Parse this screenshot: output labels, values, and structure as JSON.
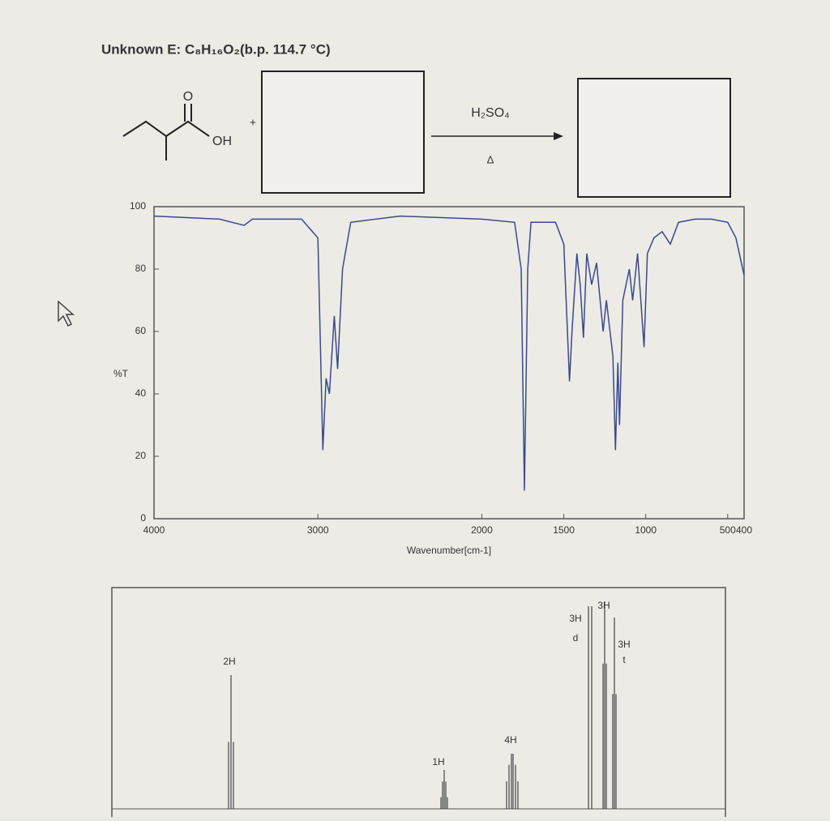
{
  "title": "Unknown E: C₈H₁₆O₂(b.p. 114.7 °C)",
  "reaction": {
    "carbonyl_o": "O",
    "hydroxyl": "OH",
    "plus": "+",
    "reagent": "H₂SO₄",
    "condition": "Δ"
  },
  "chart_data": {
    "type": "line",
    "xlabel": "Wavenumber[cm-1]",
    "ylabel": "%T",
    "xlim": [
      4000,
      400
    ],
    "ylim": [
      0,
      100
    ],
    "xticks": [
      4000,
      3000,
      2000,
      1500,
      1000,
      500,
      400
    ],
    "yticks": [
      0,
      20,
      40,
      60,
      80,
      100
    ],
    "color": "#3a4a8a",
    "x": [
      4000,
      3600,
      3450,
      3400,
      3100,
      3000,
      2970,
      2950,
      2930,
      2900,
      2880,
      2850,
      2800,
      2500,
      2000,
      1800,
      1760,
      1740,
      1720,
      1700,
      1550,
      1500,
      1465,
      1450,
      1420,
      1400,
      1380,
      1360,
      1330,
      1300,
      1260,
      1240,
      1200,
      1185,
      1170,
      1160,
      1140,
      1100,
      1080,
      1050,
      1010,
      990,
      950,
      900,
      850,
      800,
      700,
      600,
      500,
      450,
      400
    ],
    "values": [
      97,
      96,
      94,
      96,
      96,
      90,
      22,
      45,
      40,
      65,
      48,
      80,
      95,
      97,
      96,
      95,
      80,
      9,
      80,
      95,
      95,
      88,
      44,
      60,
      85,
      75,
      58,
      85,
      75,
      82,
      60,
      70,
      52,
      22,
      50,
      30,
      70,
      80,
      70,
      85,
      55,
      85,
      90,
      92,
      88,
      95,
      96,
      96,
      95,
      90,
      78
    ]
  },
  "nmr": {
    "peaks": [
      {
        "label": "2H"
      },
      {
        "label": "1H"
      },
      {
        "label": "4H"
      },
      {
        "label": "3H",
        "multiplicity": "d"
      },
      {
        "label": "3H"
      },
      {
        "label": "3H",
        "multiplicity": "t"
      }
    ]
  }
}
